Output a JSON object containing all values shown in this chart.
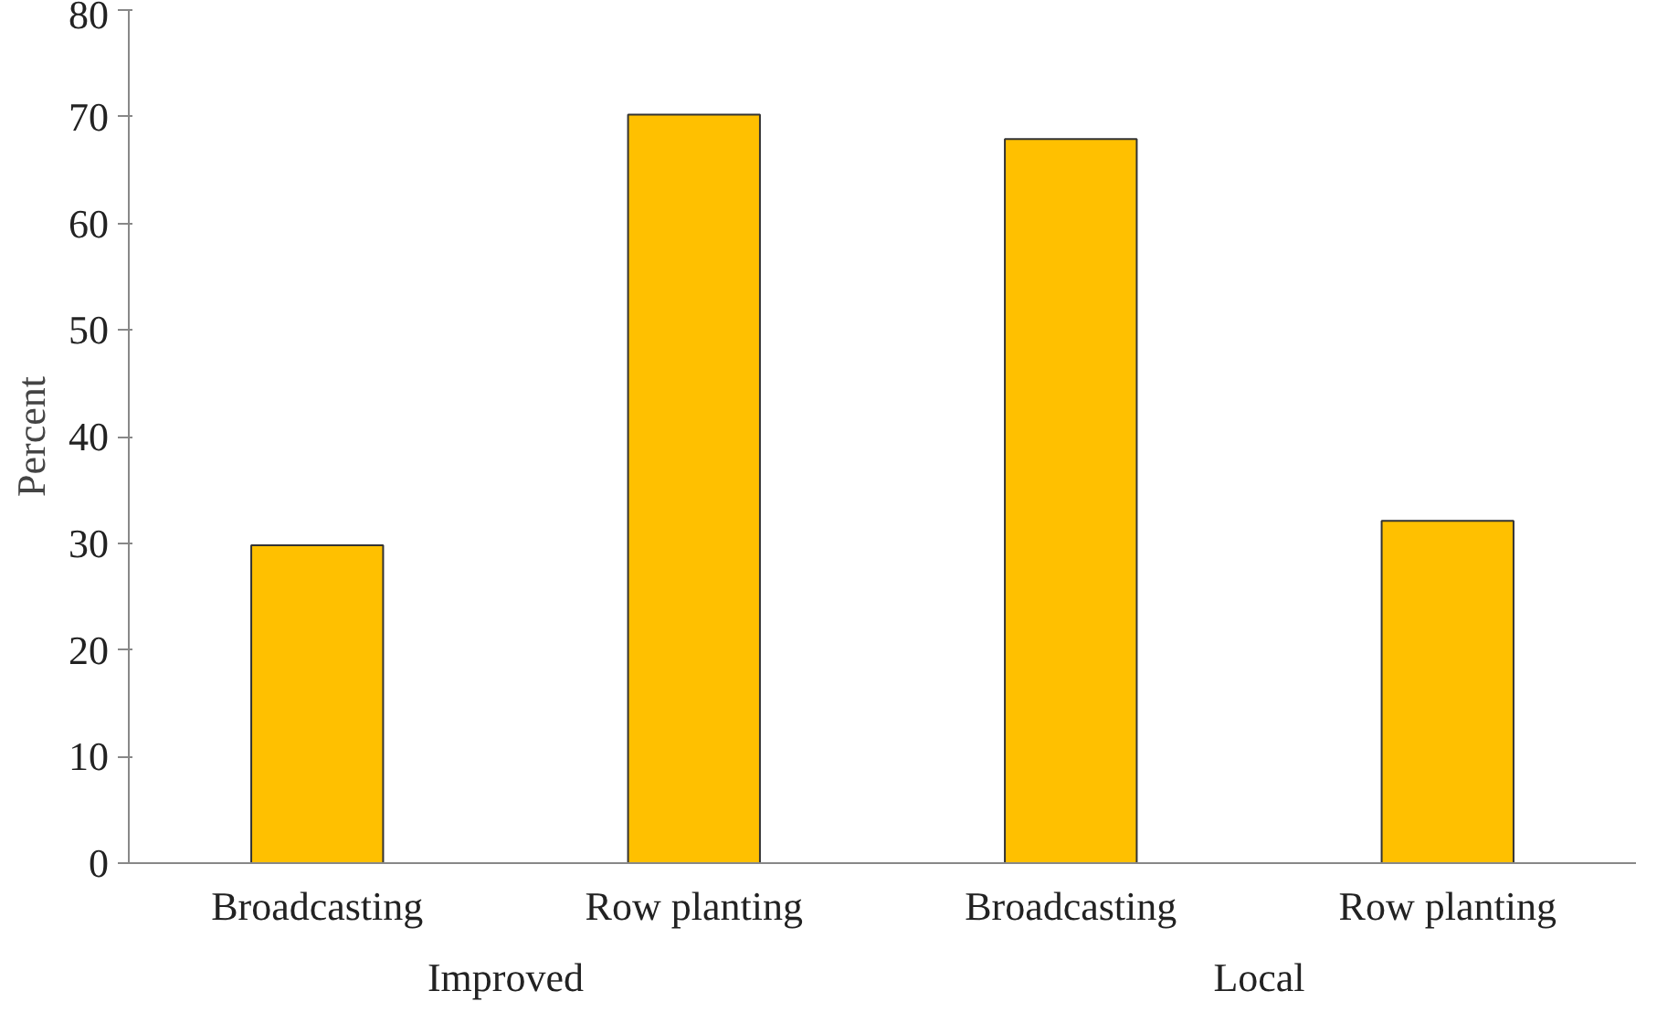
{
  "chart_data": {
    "type": "bar",
    "ylabel": "Percent",
    "categories": [
      "Broadcasting",
      "Row planting",
      "Broadcasting",
      "Row planting"
    ],
    "annotations": [
      "Improved",
      "Local"
    ],
    "values": [
      29.8,
      70.2,
      67.9,
      32.1
    ],
    "color": "#ffc000",
    "ylim": [
      0,
      80
    ],
    "yticks": [
      0,
      10,
      20,
      30,
      40,
      50,
      60,
      70,
      80
    ],
    "grid": false
  }
}
